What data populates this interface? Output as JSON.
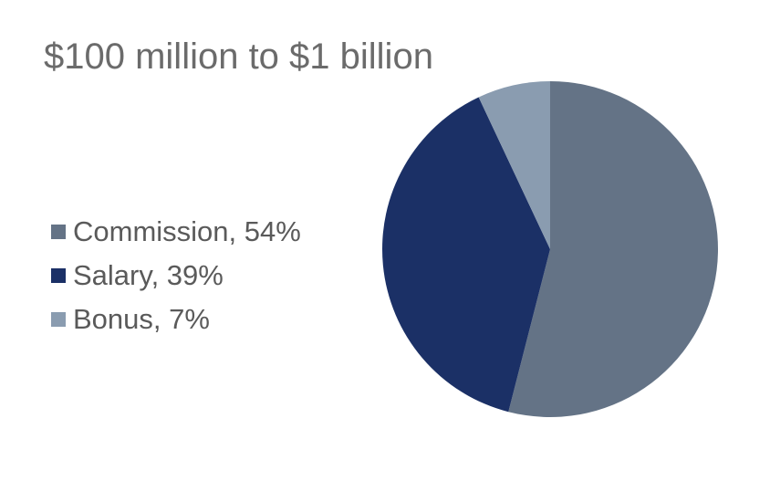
{
  "chart_data": {
    "type": "pie",
    "title": "$100 million to $1 billion",
    "categories": [
      "Commission",
      "Salary",
      "Bonus"
    ],
    "values": [
      54,
      39,
      7
    ],
    "unit": "%",
    "legend_labels": [
      "Commission, 54%",
      "Salary, 39%",
      "Bonus, 7%"
    ],
    "colors": [
      "#647386",
      "#1b3066",
      "#8a9cb0"
    ],
    "legend_position": "left",
    "start_angle": "12 o'clock",
    "direction": "clockwise"
  }
}
